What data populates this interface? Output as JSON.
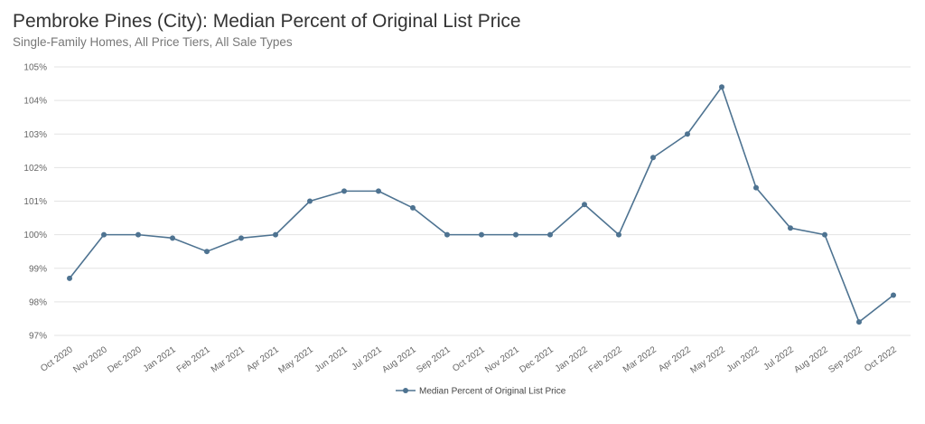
{
  "chart_data": {
    "type": "line",
    "title": "Pembroke Pines (City): Median Percent of Original List Price",
    "subtitle": "Single-Family Homes, All Price Tiers, All Sale Types",
    "categories": [
      "Oct 2020",
      "Nov 2020",
      "Dec 2020",
      "Jan 2021",
      "Feb 2021",
      "Mar 2021",
      "Apr 2021",
      "May 2021",
      "Jun 2021",
      "Jul 2021",
      "Aug 2021",
      "Sep 2021",
      "Oct 2021",
      "Nov 2021",
      "Dec 2021",
      "Jan 2022",
      "Feb 2022",
      "Mar 2022",
      "Apr 2022",
      "May 2022",
      "Jun 2022",
      "Jul 2022",
      "Aug 2022",
      "Sep 2022",
      "Oct 2022"
    ],
    "series": [
      {
        "name": "Median Percent of Original List Price",
        "values": [
          98.7,
          100.0,
          100.0,
          99.9,
          99.5,
          99.9,
          100.0,
          101.0,
          101.3,
          101.3,
          100.8,
          100.0,
          100.0,
          100.0,
          100.0,
          100.9,
          100.0,
          102.3,
          103.0,
          104.4,
          101.4,
          100.2,
          100.0,
          97.4,
          98.2
        ]
      }
    ],
    "yticks": [
      "97%",
      "98%",
      "99%",
      "100%",
      "101%",
      "102%",
      "103%",
      "104%",
      "105%"
    ],
    "ylim": [
      97,
      105
    ],
    "grid": true,
    "legend": "bottom-center",
    "colors": {
      "line": "#4e7391",
      "grid": "#e3e3e3"
    }
  }
}
